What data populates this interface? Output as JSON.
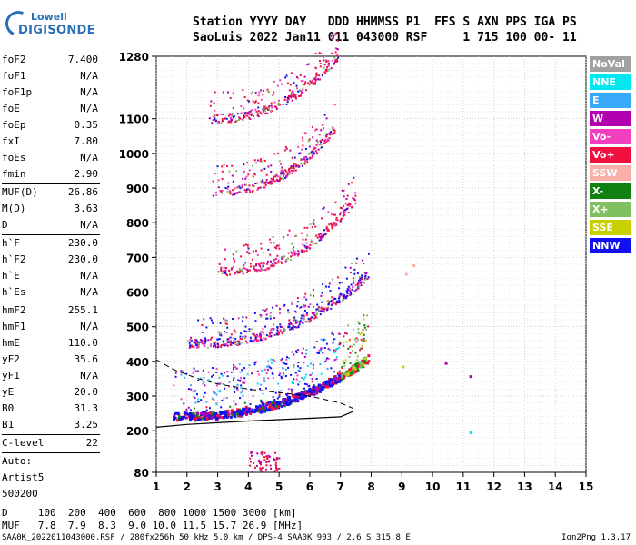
{
  "logo": {
    "line1": "Lowell",
    "line2": "DIGISONDE"
  },
  "header": {
    "line1": "Station YYYY DAY   DDD HHMMSS P1  FFS S AXN PPS IGA PS",
    "line2": "SaoLuis 2022 Jan11 011 043000 RSF     1 715 100 00- 11"
  },
  "params": [
    {
      "k": "foF2",
      "v": "7.400"
    },
    {
      "k": "foF1",
      "v": "N/A"
    },
    {
      "k": "foF1p",
      "v": "N/A"
    },
    {
      "k": "foE",
      "v": "N/A"
    },
    {
      "k": "foEp",
      "v": "0.35"
    },
    {
      "k": "fxI",
      "v": "7.80"
    },
    {
      "k": "foEs",
      "v": "N/A"
    },
    {
      "k": "fmin",
      "v": "2.90"
    },
    {
      "sep": true
    },
    {
      "k": "MUF(D)",
      "v": "26.86"
    },
    {
      "k": "M(D)",
      "v": "3.63"
    },
    {
      "k": "D",
      "v": "N/A"
    },
    {
      "sep": true
    },
    {
      "k": "h`F",
      "v": "230.0"
    },
    {
      "k": "h`F2",
      "v": "230.0"
    },
    {
      "k": "h`E",
      "v": "N/A"
    },
    {
      "k": "h`Es",
      "v": "N/A"
    },
    {
      "sep": true
    },
    {
      "k": "hmF2",
      "v": "255.1"
    },
    {
      "k": "hmF1",
      "v": "N/A"
    },
    {
      "k": "hmE",
      "v": "110.0"
    },
    {
      "k": "yF2",
      "v": "35.6"
    },
    {
      "k": "yF1",
      "v": "N/A"
    },
    {
      "k": "yE",
      "v": "20.0"
    },
    {
      "k": "B0",
      "v": "31.3"
    },
    {
      "k": "B1",
      "v": "3.25"
    },
    {
      "sep": true
    },
    {
      "k": "C-level",
      "v": "22"
    },
    {
      "sep": true
    },
    {
      "t": "Auto:"
    },
    {
      "t": "Artist5"
    },
    {
      "t": "500200"
    }
  ],
  "legend": [
    {
      "label": "NoVal",
      "color": "#a0a0a0"
    },
    {
      "label": "NNE",
      "color": "#00e8f0"
    },
    {
      "label": "E",
      "color": "#38a8f8"
    },
    {
      "label": "W",
      "color": "#b000b0"
    },
    {
      "label": "Vo-",
      "color": "#f040c0"
    },
    {
      "label": "Vo+",
      "color": "#f01040"
    },
    {
      "label": "SSW",
      "color": "#f8b0a8"
    },
    {
      "label": "X-",
      "color": "#108010"
    },
    {
      "label": "X+",
      "color": "#80c060"
    },
    {
      "label": "SSE",
      "color": "#c8d000"
    },
    {
      "label": "NNW",
      "color": "#1010f0"
    }
  ],
  "dmuf": {
    "d_line": "D     100  200  400  600  800 1000 1500 3000 [km]",
    "muf_line": "MUF   7.8  7.9  8.3  9.0 10.0 11.5 15.7 26.9 [MHz]"
  },
  "footer": {
    "left": "SAA0K_2022011043000.RSF / 280fx256h 50 kHz 5.0 km / DPS-4 SAA0K 903 / 2.6 S 315.8 E",
    "right": "Ion2Png 1.3.17"
  },
  "chart_data": {
    "type": "scatter",
    "title": "",
    "xlabel": "",
    "ylabel": "",
    "xlim": [
      1,
      15
    ],
    "ylim": [
      80,
      1280
    ],
    "x_ticks": [
      1,
      2,
      3,
      4,
      5,
      6,
      7,
      8,
      9,
      10,
      11,
      12,
      13,
      14,
      15
    ],
    "y_ticks": [
      80,
      200,
      300,
      400,
      500,
      600,
      700,
      800,
      900,
      1000,
      1100,
      1280
    ],
    "grid": true,
    "units": {
      "x": "MHz",
      "y": "km"
    },
    "traces": [
      {
        "name": "F-layer first hop",
        "x_start": 1.5,
        "x_end": 7.9,
        "h_start": 232,
        "h_end": 400,
        "pattern": "dense-band"
      },
      {
        "name": "F-layer second hop",
        "x_start": 2.0,
        "x_end": 7.9,
        "h_start": 440,
        "h_end": 640,
        "pattern": "band"
      },
      {
        "name": "F-layer third hop",
        "x_start": 3.0,
        "x_end": 7.5,
        "h_start": 650,
        "h_end": 860,
        "pattern": "sparse"
      },
      {
        "name": "F-layer fourth hop",
        "x_start": 2.8,
        "x_end": 6.8,
        "h_start": 880,
        "h_end": 1060,
        "pattern": "sparse"
      },
      {
        "name": "F-layer fifth hop",
        "x_start": 2.7,
        "x_end": 6.9,
        "h_start": 1090,
        "h_end": 1270,
        "pattern": "sparse"
      }
    ],
    "profile": {
      "x": [
        1.0,
        2.0,
        3.0,
        4.0,
        5.0,
        6.0,
        7.0,
        7.4
      ],
      "h": [
        210,
        218,
        223,
        228,
        232,
        236,
        240,
        255
      ]
    },
    "extrapolation": {
      "x": [
        1.0,
        1.6,
        2.3,
        3.0,
        4.0,
        5.0,
        6.0,
        7.0,
        7.4
      ],
      "h": [
        405,
        375,
        352,
        335,
        320,
        310,
        300,
        280,
        265
      ]
    }
  }
}
